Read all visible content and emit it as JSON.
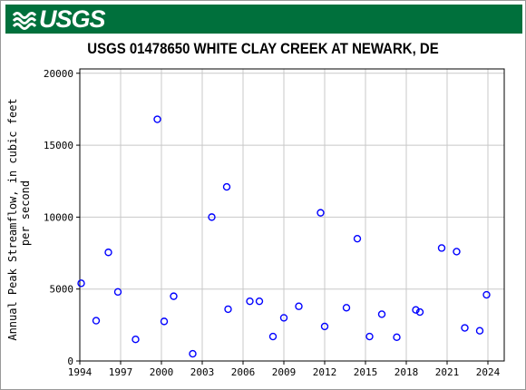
{
  "header": {
    "logo_text": "USGS",
    "logo_icon": "usgs-wave-icon",
    "brand_color": "#00703c"
  },
  "chart_data": {
    "type": "scatter",
    "title": "USGS 01478650 WHITE CLAY CREEK AT NEWARK, DE",
    "xlabel": "",
    "ylabel_line1": "Annual Peak Streamflow, in cubic feet",
    "ylabel_line2": "per second",
    "xlim": [
      1994,
      2025.2
    ],
    "ylim": [
      0,
      20300
    ],
    "x_ticks": [
      1994,
      1997,
      2000,
      2003,
      2006,
      2009,
      2012,
      2015,
      2018,
      2021,
      2024
    ],
    "y_ticks": [
      0,
      5000,
      10000,
      15000,
      20000
    ],
    "grid": true,
    "marker": "open-circle",
    "marker_color": "#0000ff",
    "points": [
      {
        "x": 1994.1,
        "y": 5400
      },
      {
        "x": 1995.2,
        "y": 2800
      },
      {
        "x": 1996.1,
        "y": 7550
      },
      {
        "x": 1996.8,
        "y": 4800
      },
      {
        "x": 1998.1,
        "y": 1500
      },
      {
        "x": 1999.7,
        "y": 16800
      },
      {
        "x": 2000.2,
        "y": 2750
      },
      {
        "x": 2000.9,
        "y": 4500
      },
      {
        "x": 2002.3,
        "y": 500
      },
      {
        "x": 2003.7,
        "y": 10000
      },
      {
        "x": 2004.8,
        "y": 12100
      },
      {
        "x": 2004.9,
        "y": 3600
      },
      {
        "x": 2006.5,
        "y": 4150
      },
      {
        "x": 2007.2,
        "y": 4150
      },
      {
        "x": 2008.2,
        "y": 1700
      },
      {
        "x": 2009.0,
        "y": 3000
      },
      {
        "x": 2010.1,
        "y": 3800
      },
      {
        "x": 2011.7,
        "y": 10300
      },
      {
        "x": 2012.0,
        "y": 2400
      },
      {
        "x": 2013.6,
        "y": 3700
      },
      {
        "x": 2014.4,
        "y": 8500
      },
      {
        "x": 2015.3,
        "y": 1700
      },
      {
        "x": 2016.2,
        "y": 3250
      },
      {
        "x": 2017.3,
        "y": 1650
      },
      {
        "x": 2018.7,
        "y": 3550
      },
      {
        "x": 2019.0,
        "y": 3400
      },
      {
        "x": 2020.6,
        "y": 7850
      },
      {
        "x": 2021.7,
        "y": 7600
      },
      {
        "x": 2022.3,
        "y": 2300
      },
      {
        "x": 2023.4,
        "y": 2100
      },
      {
        "x": 2023.9,
        "y": 4600
      }
    ]
  }
}
